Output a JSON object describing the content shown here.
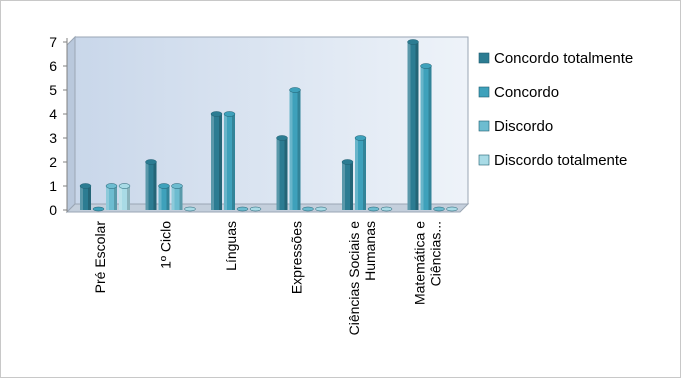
{
  "chart_data": {
    "type": "bar",
    "title": "",
    "xlabel": "",
    "ylabel": "",
    "ylim": [
      0,
      7
    ],
    "yticks": [
      0,
      1,
      2,
      3,
      4,
      5,
      6,
      7
    ],
    "grid": false,
    "legend_position": "right",
    "categories": [
      [
        "Pré Escolar"
      ],
      [
        "1º Ciclo"
      ],
      [
        "Línguas"
      ],
      [
        "Expressões"
      ],
      [
        "Ciências Sociais e",
        "Humanas"
      ],
      [
        "Matemática e",
        "Ciências..."
      ]
    ],
    "series": [
      {
        "name": "Concordo totalmente",
        "color": "#2c7c92",
        "values": [
          1,
          2,
          4,
          3,
          2,
          7
        ]
      },
      {
        "name": "Concordo",
        "color": "#3ea1bb",
        "values": [
          0,
          1,
          4,
          5,
          3,
          6
        ]
      },
      {
        "name": "Discordo",
        "color": "#6dbcd0",
        "values": [
          1,
          1,
          0,
          0,
          0,
          0
        ]
      },
      {
        "name": "Discordo totalmente",
        "color": "#a9dbe6",
        "values": [
          1,
          0,
          0,
          0,
          0,
          0
        ]
      }
    ],
    "wall_color": "#dce6f2"
  }
}
